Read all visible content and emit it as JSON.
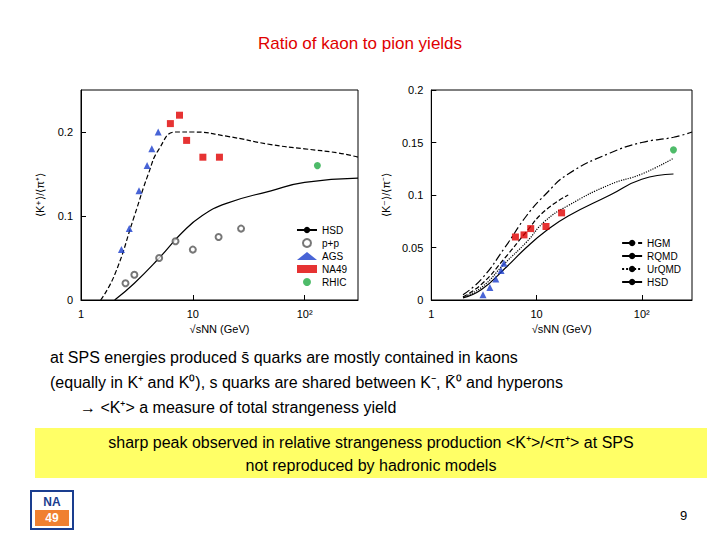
{
  "slide": {
    "title": "Ratio of kaon to pion yields",
    "text": [
      "at SPS energies produced s̄ quarks are mostly contained in kaons",
      "(equally in K⁺ and K⁰), s quarks are shared between K⁻, K̄⁰ and hyperons",
      "→ <K⁺>  a measure of total strangeness yield"
    ],
    "highlight": [
      "sharp peak observed in relative strangeness production <K⁺>/<π⁺> at SPS",
      "not reproduced by hadronic models"
    ],
    "page": 9,
    "logo": [
      "NA",
      "49"
    ]
  },
  "chart_data": [
    {
      "type": "line",
      "log": "x",
      "grid": false,
      "legend": "lower right",
      "x_label": "√sNN (GeV)",
      "y_label": "⟨K⁺⟩/⟨π⁺⟩",
      "xlim": [
        1,
        300
      ],
      "xticks": [
        1,
        10,
        {
          "value": 100,
          "label": "10²"
        }
      ],
      "ylim": [
        0,
        0.25
      ],
      "yticks": [
        0,
        0.1,
        0.2
      ],
      "series": [
        {
          "name": "HSD",
          "type": "line",
          "color": "#000000",
          "line_style": "dashed",
          "x": [
            1.5,
            2,
            3,
            4,
            5,
            7,
            10,
            20,
            50,
            100,
            200,
            300
          ],
          "values": [
            0.0,
            0.03,
            0.1,
            0.15,
            0.18,
            0.2,
            0.2,
            0.195,
            0.185,
            0.18,
            0.175,
            0.17
          ]
        },
        {
          "name": "HSD",
          "type": "line",
          "color": "#000000",
          "line_style": "solid",
          "x": [
            2,
            3,
            5,
            8,
            12,
            20,
            50,
            100,
            300
          ],
          "values": [
            0.0,
            0.02,
            0.05,
            0.08,
            0.1,
            0.115,
            0.13,
            0.14,
            0.145
          ]
        },
        {
          "name": "p+p",
          "type": "scatter",
          "color": "#555555",
          "marker": "open_circle",
          "x": [
            2.5,
            3,
            5,
            7,
            10,
            17,
            27
          ],
          "values": [
            0.02,
            0.03,
            0.05,
            0.07,
            0.06,
            0.075,
            0.085
          ]
        },
        {
          "name": "AGS",
          "type": "scatter",
          "color": "#1a3dcc",
          "marker": "triangle",
          "x": [
            2.3,
            2.7,
            3.3,
            3.9,
            4.3,
            4.9
          ],
          "values": [
            0.06,
            0.085,
            0.13,
            0.16,
            0.18,
            0.2
          ]
        },
        {
          "name": "NA49",
          "type": "scatter",
          "color": "#e00000",
          "marker": "square",
          "x": [
            6.3,
            7.6,
            8.8,
            12.3,
            17.3
          ],
          "values": [
            0.21,
            0.22,
            0.19,
            0.17,
            0.17
          ]
        },
        {
          "name": "RHIC",
          "type": "scatter",
          "color": "#22aa44",
          "marker": "circle",
          "x": [
            130
          ],
          "values": [
            0.16
          ]
        }
      ]
    },
    {
      "type": "line",
      "log": "x",
      "grid": false,
      "legend": "lower right",
      "x_label": "√sNN (GeV)",
      "y_label": "⟨K⁻⟩/⟨π⁻⟩",
      "xlim": [
        1,
        300
      ],
      "xticks": [
        1,
        10,
        {
          "value": 100,
          "label": "10²"
        }
      ],
      "ylim": [
        0,
        0.2
      ],
      "yticks": [
        0,
        0.05,
        0.1,
        0.15,
        0.2
      ],
      "series": [
        {
          "name": "HGM",
          "type": "line",
          "color": "#000000",
          "line_style": "dashdot",
          "x": [
            2,
            3,
            5,
            8,
            12,
            20,
            50,
            100,
            200,
            300
          ],
          "values": [
            0.005,
            0.02,
            0.05,
            0.08,
            0.1,
            0.12,
            0.14,
            0.15,
            0.155,
            0.16
          ]
        },
        {
          "name": "RQMD",
          "type": "line",
          "color": "#000000",
          "line_style": "dashed",
          "x": [
            2,
            3,
            5,
            8,
            12,
            20
          ],
          "values": [
            0.003,
            0.015,
            0.04,
            0.065,
            0.085,
            0.1
          ]
        },
        {
          "name": "UrQMD",
          "type": "line",
          "color": "#000000",
          "line_style": "dotted",
          "x": [
            2,
            3,
            5,
            8,
            12,
            20,
            50,
            100,
            200
          ],
          "values": [
            0.003,
            0.012,
            0.035,
            0.055,
            0.075,
            0.09,
            0.11,
            0.12,
            0.135
          ]
        },
        {
          "name": "HSD",
          "type": "line",
          "color": "#000000",
          "line_style": "solid",
          "x": [
            2,
            3,
            5,
            8,
            12,
            20,
            50,
            100,
            200
          ],
          "values": [
            0.002,
            0.01,
            0.03,
            0.05,
            0.065,
            0.08,
            0.1,
            0.115,
            0.12
          ]
        },
        {
          "type": "scatter",
          "color": "#1a3dcc",
          "marker": "triangle",
          "x": [
            3.1,
            3.6,
            4.1,
            4.6,
            4.9
          ],
          "values": [
            0.005,
            0.012,
            0.02,
            0.028,
            0.035
          ]
        },
        {
          "type": "scatter",
          "color": "#e00000",
          "marker": "square",
          "x": [
            6.3,
            7.6,
            8.8,
            12.3,
            17.3
          ],
          "values": [
            0.06,
            0.062,
            0.068,
            0.07,
            0.083
          ]
        },
        {
          "type": "scatter",
          "color": "#22aa44",
          "marker": "circle",
          "x": [
            200
          ],
          "values": [
            0.143
          ]
        }
      ]
    }
  ]
}
